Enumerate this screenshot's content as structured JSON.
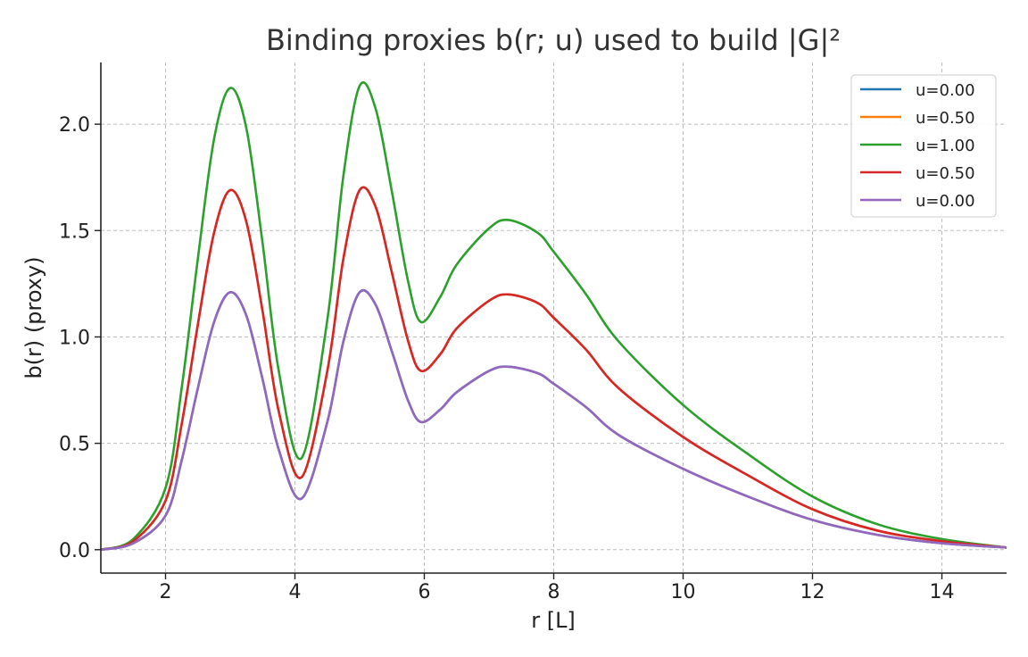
{
  "chart_data": {
    "type": "line",
    "title": "Binding proxies b(r; u) used to build |G|²",
    "xlabel": "r [L]",
    "ylabel": "b(r) (proxy)",
    "xlim": [
      1.0,
      15.0
    ],
    "ylim": [
      -0.11,
      2.29
    ],
    "xticks": [
      2,
      4,
      6,
      8,
      10,
      12,
      14
    ],
    "yticks": [
      0.0,
      0.5,
      1.0,
      1.5,
      2.0
    ],
    "xtick_labels": [
      "2",
      "4",
      "6",
      "8",
      "10",
      "12",
      "14"
    ],
    "ytick_labels": [
      "0.0",
      "0.5",
      "1.0",
      "1.5",
      "2.0"
    ],
    "grid": true,
    "legend_position": "top-right",
    "x": [
      1.0,
      1.5,
      2.0,
      2.25,
      2.5,
      2.75,
      3.0,
      3.25,
      3.5,
      3.75,
      4.1,
      4.5,
      4.75,
      5.0,
      5.25,
      5.5,
      5.75,
      5.95,
      6.25,
      6.5,
      7.0,
      7.3,
      7.75,
      8.0,
      8.5,
      9.0,
      10.0,
      11.0,
      12.0,
      13.0,
      14.0,
      15.0
    ],
    "series": [
      {
        "name": "u=0.00",
        "color": "#1f77b4",
        "values": [
          0.0,
          0.03,
          0.16,
          0.42,
          0.76,
          1.07,
          1.21,
          1.1,
          0.8,
          0.47,
          0.24,
          0.6,
          0.98,
          1.21,
          1.15,
          0.93,
          0.7,
          0.6,
          0.66,
          0.74,
          0.84,
          0.86,
          0.83,
          0.78,
          0.67,
          0.54,
          0.38,
          0.25,
          0.14,
          0.07,
          0.03,
          0.01
        ]
      },
      {
        "name": "u=0.50",
        "color": "#ff7f0e",
        "values": [
          0.0,
          0.04,
          0.23,
          0.59,
          1.06,
          1.49,
          1.69,
          1.54,
          1.12,
          0.65,
          0.34,
          0.84,
          1.37,
          1.69,
          1.61,
          1.3,
          0.98,
          0.84,
          0.92,
          1.04,
          1.17,
          1.2,
          1.16,
          1.09,
          0.94,
          0.76,
          0.53,
          0.35,
          0.19,
          0.09,
          0.04,
          0.01
        ]
      },
      {
        "name": "u=1.00",
        "color": "#2ca02c",
        "values": [
          0.0,
          0.05,
          0.29,
          0.76,
          1.37,
          1.93,
          2.17,
          1.98,
          1.44,
          0.84,
          0.43,
          1.08,
          1.76,
          2.18,
          2.07,
          1.68,
          1.26,
          1.07,
          1.19,
          1.34,
          1.51,
          1.55,
          1.49,
          1.4,
          1.2,
          0.98,
          0.68,
          0.45,
          0.25,
          0.12,
          0.05,
          0.01
        ]
      },
      {
        "name": "u=0.50",
        "color": "#d62728",
        "values": [
          0.0,
          0.04,
          0.23,
          0.59,
          1.06,
          1.49,
          1.69,
          1.54,
          1.12,
          0.65,
          0.34,
          0.84,
          1.37,
          1.69,
          1.61,
          1.3,
          0.98,
          0.84,
          0.92,
          1.04,
          1.17,
          1.2,
          1.16,
          1.09,
          0.94,
          0.76,
          0.53,
          0.35,
          0.19,
          0.09,
          0.04,
          0.01
        ]
      },
      {
        "name": "u=0.00",
        "color": "#9467bd",
        "values": [
          0.0,
          0.03,
          0.16,
          0.42,
          0.76,
          1.07,
          1.21,
          1.1,
          0.8,
          0.47,
          0.24,
          0.6,
          0.98,
          1.21,
          1.15,
          0.93,
          0.7,
          0.6,
          0.66,
          0.74,
          0.84,
          0.86,
          0.83,
          0.78,
          0.67,
          0.54,
          0.38,
          0.25,
          0.14,
          0.07,
          0.03,
          0.01
        ]
      }
    ]
  }
}
